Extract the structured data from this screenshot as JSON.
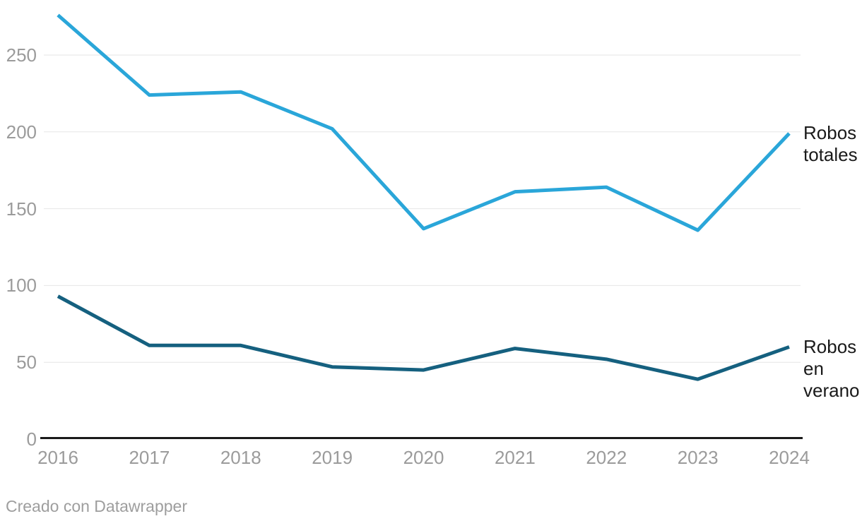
{
  "chart_data": {
    "type": "line",
    "title": "",
    "xlabel": "",
    "ylabel": "",
    "x": [
      2016,
      2017,
      2018,
      2019,
      2020,
      2021,
      2022,
      2023,
      2024
    ],
    "series": [
      {
        "name": "Robos totales",
        "color": "#2aa6d9",
        "values": [
          276,
          224,
          226,
          202,
          137,
          161,
          164,
          136,
          199
        ],
        "label_lines": [
          "Robos",
          "totales"
        ]
      },
      {
        "name": "Robos en verano",
        "color": "#15607f",
        "values": [
          93,
          61,
          61,
          47,
          45,
          59,
          52,
          39,
          60
        ],
        "label_lines": [
          "Robos",
          "en",
          "verano"
        ]
      }
    ],
    "yticks": [
      0,
      50,
      100,
      150,
      200,
      250
    ],
    "ylim": [
      0,
      280
    ],
    "grid": true,
    "legend_position": "right-at-line-end"
  },
  "footer": {
    "attribution": "Creado con Datawrapper"
  },
  "colors": {
    "grid": "#e6e6e6",
    "axis": "#1a1a1a",
    "tick_text": "#9b9b9b",
    "label_text": "#1a1a1a",
    "attribution_text": "#9e9e9e",
    "background": "#ffffff"
  }
}
